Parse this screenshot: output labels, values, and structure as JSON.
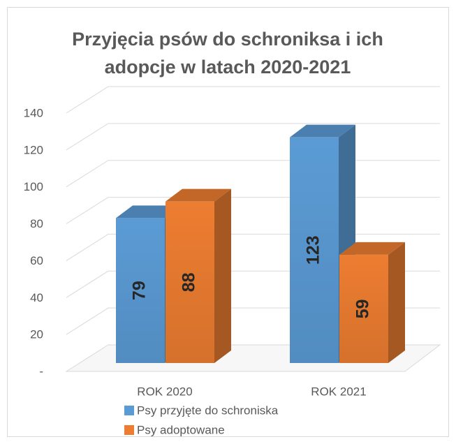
{
  "chart_data": {
    "type": "bar3d",
    "title": "Przyjęcia psów do schroniksa i ich adopcje w latach 2020-2021",
    "categories": [
      "ROK 2020",
      "ROK 2021"
    ],
    "series": [
      {
        "name": "Psy przyjęte do schroniska",
        "color": "#5b9bd5",
        "values": [
          79,
          123
        ]
      },
      {
        "name": "Psy adoptowane",
        "color": "#ed7d31",
        "values": [
          88,
          59
        ]
      }
    ],
    "ylim": [
      0,
      140
    ],
    "yticks": [
      {
        "value": 0,
        "label": "-"
      },
      20,
      40,
      60,
      80,
      100,
      120,
      140
    ],
    "grid": true,
    "legend": "bottom"
  }
}
